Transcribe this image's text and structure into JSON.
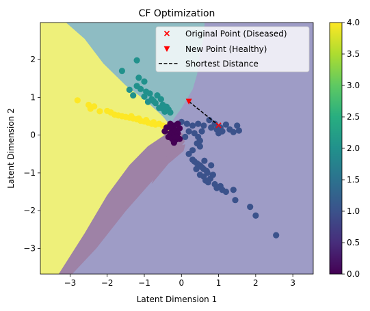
{
  "chart_data": {
    "type": "scatter",
    "title": "CF Optimization",
    "xlabel": "Latent Dimension 1",
    "ylabel": "Latent Dimension 2",
    "xlim": [
      -3.8,
      3.55
    ],
    "ylim": [
      -3.68,
      2.98
    ],
    "xticks": [
      -3,
      -2,
      -1,
      0,
      1,
      2,
      3
    ],
    "yticks": [
      -3,
      -2,
      -1,
      0,
      1,
      2
    ],
    "xtick_labels": [
      "−3",
      "−2",
      "−1",
      "0",
      "1",
      "2",
      "3"
    ],
    "ytick_labels": [
      "−3",
      "−2",
      "−1",
      "0",
      "1",
      "2"
    ],
    "grid": false,
    "legend_position": "top-right",
    "legend": [
      {
        "label": "Original Point (Diseased)",
        "marker": "x",
        "color": "#ff0000"
      },
      {
        "label": "New Point (Healthy)",
        "marker": "triangle-down",
        "color": "#ff0000"
      },
      {
        "label": "Shortest Distance",
        "marker": "dashed-line",
        "color": "#000000"
      }
    ],
    "colorbar": {
      "colormap": "viridis",
      "min": 0.0,
      "max": 4.0,
      "ticks": [
        0.0,
        0.5,
        1.0,
        1.5,
        2.0,
        2.5,
        3.0,
        3.5,
        4.0
      ],
      "tick_labels": [
        "0.0",
        "0.5",
        "1.0",
        "1.5",
        "2.0",
        "2.5",
        "3.0",
        "3.5",
        "4.0"
      ]
    },
    "decision_regions": [
      {
        "class": 4,
        "color": "#eef07a",
        "polygon": [
          [
            -3.8,
            2.98
          ],
          [
            -3.1,
            2.98
          ],
          [
            -2.6,
            2.55
          ],
          [
            -2.1,
            1.9
          ],
          [
            -1.5,
            1.32
          ],
          [
            -1.0,
            0.95
          ],
          [
            -0.55,
            0.55
          ],
          [
            -0.22,
            0.15
          ],
          [
            -0.45,
            0.0
          ],
          [
            -0.9,
            -0.3
          ],
          [
            -1.4,
            -0.8
          ],
          [
            -2.0,
            -1.6
          ],
          [
            -2.6,
            -2.6
          ],
          [
            -3.3,
            -3.68
          ],
          [
            -3.8,
            -3.68
          ]
        ]
      },
      {
        "class": 2,
        "color": "#8ebcc3",
        "polygon": [
          [
            -3.1,
            2.98
          ],
          [
            0.62,
            2.98
          ],
          [
            0.6,
            2.6
          ],
          [
            0.5,
            2.2
          ],
          [
            0.42,
            1.62
          ],
          [
            0.3,
            1.22
          ],
          [
            0.0,
            0.72
          ],
          [
            -0.2,
            0.45
          ],
          [
            -0.3,
            0.3
          ],
          [
            -0.55,
            0.55
          ],
          [
            -1.0,
            0.95
          ],
          [
            -1.5,
            1.32
          ],
          [
            -2.1,
            1.9
          ],
          [
            -2.6,
            2.55
          ]
        ]
      },
      {
        "class": 0,
        "color": "#9e82a6",
        "polygon": [
          [
            -2.95,
            -3.68
          ],
          [
            -2.3,
            -3.0
          ],
          [
            -1.5,
            -2.0
          ],
          [
            -0.6,
            -1.0
          ],
          [
            -0.1,
            -0.4
          ],
          [
            0.08,
            -0.18
          ],
          [
            0.05,
            0.02
          ],
          [
            -0.2,
            0.15
          ],
          [
            -0.45,
            0.0
          ],
          [
            -0.9,
            -0.3
          ],
          [
            -1.4,
            -0.8
          ],
          [
            -2.0,
            -1.6
          ],
          [
            -2.6,
            -2.6
          ],
          [
            -3.3,
            -3.68
          ]
        ]
      },
      {
        "class": 0,
        "color": "#9e82a6",
        "polygon": [
          [
            -0.8,
            -1.28
          ],
          [
            -0.35,
            -0.75
          ],
          [
            0.05,
            -0.42
          ],
          [
            0.1,
            -0.25
          ],
          [
            -0.1,
            -0.3
          ],
          [
            -0.45,
            -0.6
          ]
        ]
      }
    ],
    "points": [
      {
        "class": 4,
        "x": -2.8,
        "y": 0.92
      },
      {
        "class": 4,
        "x": -2.5,
        "y": 0.8
      },
      {
        "class": 4,
        "x": -2.45,
        "y": 0.7
      },
      {
        "class": 4,
        "x": -2.35,
        "y": 0.76
      },
      {
        "class": 4,
        "x": -2.2,
        "y": 0.63
      },
      {
        "class": 4,
        "x": -2.0,
        "y": 0.64
      },
      {
        "class": 4,
        "x": -1.9,
        "y": 0.6
      },
      {
        "class": 4,
        "x": -1.8,
        "y": 0.54
      },
      {
        "class": 4,
        "x": -1.7,
        "y": 0.52
      },
      {
        "class": 4,
        "x": -1.6,
        "y": 0.5
      },
      {
        "class": 4,
        "x": -1.5,
        "y": 0.48
      },
      {
        "class": 4,
        "x": -1.4,
        "y": 0.46
      },
      {
        "class": 4,
        "x": -1.3,
        "y": 0.44
      },
      {
        "class": 4,
        "x": -1.2,
        "y": 0.42
      },
      {
        "class": 4,
        "x": -1.1,
        "y": 0.38
      },
      {
        "class": 4,
        "x": -1.0,
        "y": 0.36
      },
      {
        "class": 4,
        "x": -0.9,
        "y": 0.33
      },
      {
        "class": 4,
        "x": -0.8,
        "y": 0.3
      },
      {
        "class": 4,
        "x": -0.7,
        "y": 0.28
      },
      {
        "class": 4,
        "x": -0.6,
        "y": 0.3
      },
      {
        "class": 4,
        "x": -0.5,
        "y": 0.25
      },
      {
        "class": 4,
        "x": -0.4,
        "y": 0.22
      },
      {
        "class": 4,
        "x": -1.15,
        "y": 0.44
      },
      {
        "class": 4,
        "x": -1.35,
        "y": 0.5
      },
      {
        "class": 4,
        "x": -0.95,
        "y": 0.4
      },
      {
        "class": 4,
        "x": -0.75,
        "y": 0.34
      },
      {
        "class": 2,
        "x": -1.6,
        "y": 1.7
      },
      {
        "class": 2,
        "x": -1.2,
        "y": 1.98
      },
      {
        "class": 2,
        "x": -1.15,
        "y": 1.52
      },
      {
        "class": 2,
        "x": -1.0,
        "y": 1.42
      },
      {
        "class": 2,
        "x": -1.2,
        "y": 1.3
      },
      {
        "class": 2,
        "x": -1.4,
        "y": 1.2
      },
      {
        "class": 2,
        "x": -1.1,
        "y": 1.22
      },
      {
        "class": 2,
        "x": -0.95,
        "y": 1.15
      },
      {
        "class": 2,
        "x": -0.85,
        "y": 1.1
      },
      {
        "class": 2,
        "x": -1.3,
        "y": 1.05
      },
      {
        "class": 2,
        "x": -1.0,
        "y": 1.02
      },
      {
        "class": 2,
        "x": -0.8,
        "y": 0.95
      },
      {
        "class": 2,
        "x": -0.65,
        "y": 1.05
      },
      {
        "class": 2,
        "x": -0.55,
        "y": 0.95
      },
      {
        "class": 2,
        "x": -0.7,
        "y": 0.85
      },
      {
        "class": 2,
        "x": -0.5,
        "y": 0.8
      },
      {
        "class": 2,
        "x": -0.4,
        "y": 0.75
      },
      {
        "class": 2,
        "x": -0.6,
        "y": 0.72
      },
      {
        "class": 2,
        "x": -0.35,
        "y": 0.68
      },
      {
        "class": 2,
        "x": -0.45,
        "y": 0.62
      },
      {
        "class": 2,
        "x": -0.3,
        "y": 0.6
      },
      {
        "class": 2,
        "x": -0.9,
        "y": 0.88
      },
      {
        "class": 2,
        "x": -0.75,
        "y": 0.9
      },
      {
        "class": 2,
        "x": -0.5,
        "y": 0.7
      },
      {
        "class": 1,
        "x": 0.0,
        "y": 0.35
      },
      {
        "class": 1,
        "x": 0.15,
        "y": 0.3
      },
      {
        "class": 1,
        "x": 0.3,
        "y": 0.25
      },
      {
        "class": 1,
        "x": 0.45,
        "y": 0.3
      },
      {
        "class": 1,
        "x": 0.6,
        "y": 0.25
      },
      {
        "class": 1,
        "x": 0.75,
        "y": 0.4
      },
      {
        "class": 1,
        "x": 0.8,
        "y": 0.2
      },
      {
        "class": 1,
        "x": 0.9,
        "y": 0.3
      },
      {
        "class": 1,
        "x": 1.05,
        "y": 0.2
      },
      {
        "class": 1,
        "x": 1.1,
        "y": 0.1
      },
      {
        "class": 1,
        "x": 1.2,
        "y": 0.28
      },
      {
        "class": 1,
        "x": 1.3,
        "y": 0.15
      },
      {
        "class": 1,
        "x": 1.4,
        "y": 0.08
      },
      {
        "class": 1,
        "x": 1.5,
        "y": 0.25
      },
      {
        "class": 1,
        "x": 1.55,
        "y": 0.12
      },
      {
        "class": 1,
        "x": 1.0,
        "y": 0.05
      },
      {
        "class": 1,
        "x": 0.95,
        "y": 0.15
      },
      {
        "class": 1,
        "x": 0.55,
        "y": 0.1
      },
      {
        "class": 1,
        "x": 0.45,
        "y": -0.05
      },
      {
        "class": 1,
        "x": 0.5,
        "y": -0.15
      },
      {
        "class": 1,
        "x": 0.35,
        "y": 0.05
      },
      {
        "class": 1,
        "x": 0.2,
        "y": 0.1
      },
      {
        "class": 1,
        "x": 0.1,
        "y": -0.05
      },
      {
        "class": 1,
        "x": 0.42,
        "y": -0.22
      },
      {
        "class": 1,
        "x": 0.5,
        "y": -0.3
      },
      {
        "class": 1,
        "x": 0.2,
        "y": -0.5
      },
      {
        "class": 1,
        "x": 0.3,
        "y": -0.65
      },
      {
        "class": 1,
        "x": 0.35,
        "y": -0.7
      },
      {
        "class": 1,
        "x": 0.42,
        "y": -0.75
      },
      {
        "class": 1,
        "x": 0.5,
        "y": -0.8
      },
      {
        "class": 1,
        "x": 0.55,
        "y": -0.85
      },
      {
        "class": 1,
        "x": 0.6,
        "y": -0.9
      },
      {
        "class": 1,
        "x": 0.68,
        "y": -0.95
      },
      {
        "class": 1,
        "x": 0.7,
        "y": -1.0
      },
      {
        "class": 1,
        "x": 0.4,
        "y": -0.9
      },
      {
        "class": 1,
        "x": 0.5,
        "y": -1.05
      },
      {
        "class": 1,
        "x": 0.6,
        "y": -1.1
      },
      {
        "class": 1,
        "x": 0.65,
        "y": -1.2
      },
      {
        "class": 1,
        "x": 0.72,
        "y": -1.25
      },
      {
        "class": 1,
        "x": 0.78,
        "y": -1.15
      },
      {
        "class": 1,
        "x": 0.85,
        "y": -1.05
      },
      {
        "class": 1,
        "x": 0.9,
        "y": -1.3
      },
      {
        "class": 1,
        "x": 0.95,
        "y": -1.4
      },
      {
        "class": 1,
        "x": 1.05,
        "y": -1.35
      },
      {
        "class": 1,
        "x": 1.1,
        "y": -1.45
      },
      {
        "class": 1,
        "x": 1.2,
        "y": -1.5
      },
      {
        "class": 1,
        "x": 1.4,
        "y": -1.45
      },
      {
        "class": 1,
        "x": 1.45,
        "y": -1.72
      },
      {
        "class": 1,
        "x": 1.85,
        "y": -1.9
      },
      {
        "class": 1,
        "x": 2.0,
        "y": -2.13
      },
      {
        "class": 1,
        "x": 2.55,
        "y": -2.65
      },
      {
        "class": 1,
        "x": 0.3,
        "y": -0.4
      },
      {
        "class": 1,
        "x": 0.62,
        "y": -0.68
      },
      {
        "class": 1,
        "x": 0.8,
        "y": -0.8
      },
      {
        "class": 0,
        "x": -0.4,
        "y": 0.2
      },
      {
        "class": 0,
        "x": -0.3,
        "y": 0.3
      },
      {
        "class": 0,
        "x": -0.2,
        "y": 0.25
      },
      {
        "class": 0,
        "x": -0.1,
        "y": 0.3
      },
      {
        "class": 0,
        "x": -0.25,
        "y": 0.15
      },
      {
        "class": 0,
        "x": -0.15,
        "y": 0.12
      },
      {
        "class": 0,
        "x": -0.3,
        "y": 0.05
      },
      {
        "class": 0,
        "x": -0.2,
        "y": 0.0
      },
      {
        "class": 0,
        "x": -0.1,
        "y": 0.05
      },
      {
        "class": 0,
        "x": -0.35,
        "y": -0.05
      },
      {
        "class": 0,
        "x": -0.25,
        "y": -0.1
      },
      {
        "class": 0,
        "x": -0.15,
        "y": -0.12
      },
      {
        "class": 0,
        "x": -0.05,
        "y": -0.1
      },
      {
        "class": 0,
        "x": -0.2,
        "y": -0.2
      },
      {
        "class": 0,
        "x": -0.45,
        "y": 0.1
      },
      {
        "class": 0,
        "x": -0.05,
        "y": 0.18
      },
      {
        "class": 0,
        "x": -0.3,
        "y": 0.22
      },
      {
        "class": 0,
        "x": -0.12,
        "y": -0.05
      }
    ],
    "original_point": {
      "x": 1.0,
      "y": 0.26
    },
    "new_point": {
      "x": 0.2,
      "y": 0.89
    },
    "shortest_distance": {
      "from": [
        0.2,
        0.89
      ],
      "to": [
        1.0,
        0.26
      ]
    }
  }
}
